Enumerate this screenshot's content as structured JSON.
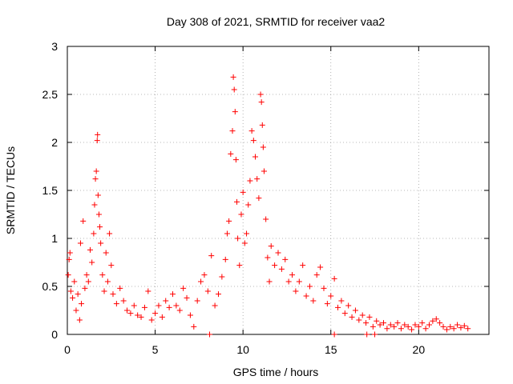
{
  "chart_data": {
    "type": "scatter",
    "title": "Day 308 of 2021, SRMTID for receiver vaa2",
    "xlabel": "GPS time / hours",
    "ylabel": "SRMTID / TECUs",
    "xlim": [
      0,
      24
    ],
    "ylim": [
      0,
      3
    ],
    "x_ticks": [
      0,
      5,
      10,
      15,
      20
    ],
    "x_tick_labels": [
      "0",
      "5",
      "10",
      "15",
      "20"
    ],
    "y_ticks": [
      0,
      0.5,
      1,
      1.5,
      2,
      2.5,
      3
    ],
    "y_tick_labels": [
      "0",
      "0.5",
      "1",
      "1.5",
      "2",
      "2.5",
      "3"
    ],
    "grid": true,
    "marker": "+",
    "series": [
      {
        "name": "SRMTID",
        "color": "#ff0000",
        "points": [
          [
            0.05,
            0.62
          ],
          [
            0.1,
            0.78
          ],
          [
            0.15,
            0.85
          ],
          [
            0.2,
            0.45
          ],
          [
            0.3,
            0.38
          ],
          [
            0.4,
            0.55
          ],
          [
            0.5,
            0.25
          ],
          [
            0.6,
            0.42
          ],
          [
            0.7,
            0.15
          ],
          [
            0.75,
            0.95
          ],
          [
            0.8,
            0.32
          ],
          [
            0.9,
            1.18
          ],
          [
            1.0,
            0.48
          ],
          [
            1.1,
            0.62
          ],
          [
            1.2,
            0.55
          ],
          [
            1.3,
            0.88
          ],
          [
            1.4,
            0.75
          ],
          [
            1.5,
            1.05
          ],
          [
            1.55,
            1.35
          ],
          [
            1.6,
            1.62
          ],
          [
            1.65,
            1.7
          ],
          [
            1.7,
            2.02
          ],
          [
            1.72,
            2.08
          ],
          [
            1.75,
            1.45
          ],
          [
            1.8,
            1.25
          ],
          [
            1.85,
            1.12
          ],
          [
            1.9,
            0.95
          ],
          [
            2.0,
            0.62
          ],
          [
            2.1,
            0.45
          ],
          [
            2.2,
            0.85
          ],
          [
            2.3,
            0.55
          ],
          [
            2.4,
            1.05
          ],
          [
            2.5,
            0.72
          ],
          [
            2.6,
            0.42
          ],
          [
            2.8,
            0.32
          ],
          [
            3.0,
            0.48
          ],
          [
            3.2,
            0.35
          ],
          [
            3.4,
            0.25
          ],
          [
            3.6,
            0.22
          ],
          [
            3.8,
            0.3
          ],
          [
            4.0,
            0.2
          ],
          [
            4.2,
            0.18
          ],
          [
            4.4,
            0.28
          ],
          [
            4.6,
            0.45
          ],
          [
            4.8,
            0.15
          ],
          [
            5.0,
            0.22
          ],
          [
            5.2,
            0.3
          ],
          [
            5.4,
            0.18
          ],
          [
            5.6,
            0.35
          ],
          [
            5.8,
            0.28
          ],
          [
            6.0,
            0.42
          ],
          [
            6.2,
            0.3
          ],
          [
            6.4,
            0.25
          ],
          [
            6.6,
            0.48
          ],
          [
            6.8,
            0.38
          ],
          [
            7.0,
            0.2
          ],
          [
            7.2,
            0.08
          ],
          [
            7.4,
            0.35
          ],
          [
            7.6,
            0.55
          ],
          [
            7.8,
            0.62
          ],
          [
            8.0,
            0.45
          ],
          [
            8.2,
            0.82
          ],
          [
            8.4,
            0.3
          ],
          [
            8.6,
            0.42
          ],
          [
            8.8,
            0.6
          ],
          [
            9.0,
            0.78
          ],
          [
            9.1,
            1.05
          ],
          [
            9.2,
            1.18
          ],
          [
            9.3,
            1.88
          ],
          [
            9.4,
            2.12
          ],
          [
            9.45,
            2.68
          ],
          [
            9.5,
            2.55
          ],
          [
            9.55,
            2.32
          ],
          [
            9.6,
            1.82
          ],
          [
            9.65,
            1.38
          ],
          [
            9.7,
            1.0
          ],
          [
            9.8,
            0.72
          ],
          [
            9.9,
            1.25
          ],
          [
            10.0,
            1.48
          ],
          [
            10.1,
            0.95
          ],
          [
            10.2,
            1.05
          ],
          [
            10.3,
            1.35
          ],
          [
            10.4,
            1.6
          ],
          [
            10.5,
            2.12
          ],
          [
            10.6,
            2.02
          ],
          [
            10.7,
            1.85
          ],
          [
            10.8,
            1.62
          ],
          [
            10.9,
            1.42
          ],
          [
            11.0,
            2.5
          ],
          [
            11.05,
            2.42
          ],
          [
            11.1,
            2.18
          ],
          [
            11.15,
            1.95
          ],
          [
            11.2,
            1.7
          ],
          [
            11.3,
            1.2
          ],
          [
            11.4,
            0.8
          ],
          [
            11.5,
            0.55
          ],
          [
            11.6,
            0.92
          ],
          [
            11.8,
            0.72
          ],
          [
            12.0,
            0.85
          ],
          [
            12.2,
            0.68
          ],
          [
            12.4,
            0.78
          ],
          [
            12.6,
            0.55
          ],
          [
            12.8,
            0.62
          ],
          [
            13.0,
            0.45
          ],
          [
            13.2,
            0.55
          ],
          [
            13.4,
            0.72
          ],
          [
            13.6,
            0.4
          ],
          [
            13.8,
            0.5
          ],
          [
            14.0,
            0.35
          ],
          [
            14.2,
            0.62
          ],
          [
            14.4,
            0.7
          ],
          [
            14.6,
            0.48
          ],
          [
            14.8,
            0.32
          ],
          [
            15.0,
            0.4
          ],
          [
            15.2,
            0.58
          ],
          [
            15.4,
            0.28
          ],
          [
            15.6,
            0.35
          ],
          [
            15.8,
            0.22
          ],
          [
            16.0,
            0.3
          ],
          [
            16.2,
            0.18
          ],
          [
            16.4,
            0.25
          ],
          [
            16.6,
            0.15
          ],
          [
            16.8,
            0.2
          ],
          [
            17.0,
            0.12
          ],
          [
            17.2,
            0.18
          ],
          [
            17.4,
            0.08
          ],
          [
            17.6,
            0.14
          ],
          [
            17.8,
            0.1
          ],
          [
            18.0,
            0.12
          ],
          [
            18.2,
            0.06
          ],
          [
            18.4,
            0.1
          ],
          [
            18.6,
            0.08
          ],
          [
            18.8,
            0.12
          ],
          [
            19.0,
            0.06
          ],
          [
            19.2,
            0.1
          ],
          [
            19.4,
            0.08
          ],
          [
            19.6,
            0.05
          ],
          [
            19.8,
            0.1
          ],
          [
            20.0,
            0.08
          ],
          [
            20.2,
            0.12
          ],
          [
            20.4,
            0.06
          ],
          [
            20.6,
            0.1
          ],
          [
            20.8,
            0.14
          ],
          [
            21.0,
            0.16
          ],
          [
            21.2,
            0.12
          ],
          [
            21.4,
            0.08
          ],
          [
            21.6,
            0.05
          ],
          [
            21.8,
            0.08
          ],
          [
            22.0,
            0.06
          ],
          [
            22.2,
            0.1
          ],
          [
            22.4,
            0.07
          ],
          [
            22.6,
            0.09
          ],
          [
            22.8,
            0.06
          ],
          [
            8.1,
            0.0
          ],
          [
            15.2,
            0.0
          ],
          [
            17.05,
            0.0
          ],
          [
            17.5,
            0.0
          ]
        ]
      }
    ]
  }
}
